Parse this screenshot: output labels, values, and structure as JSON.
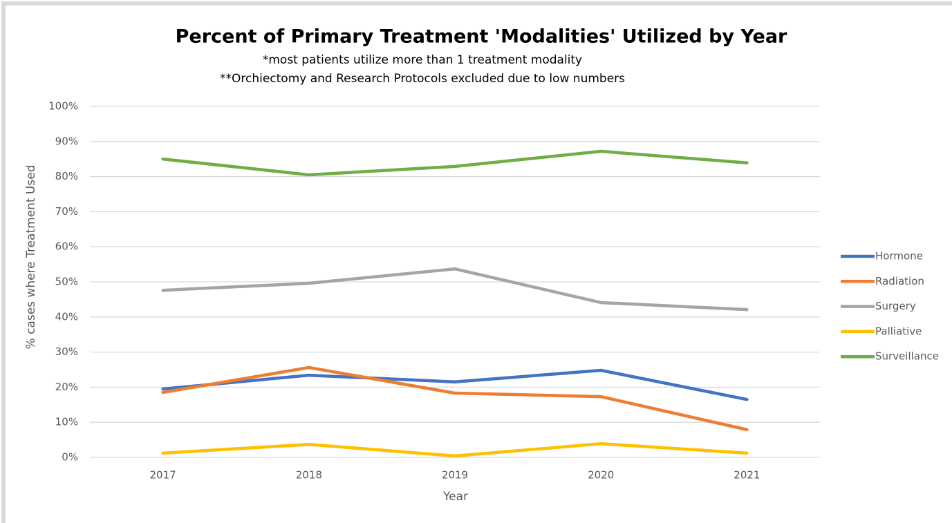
{
  "chart_data": {
    "type": "line",
    "title": "Percent of Primary Treatment 'Modalities' Utilized by Year",
    "subtitles": [
      "*most patients utilize more than 1 treatment modality",
      "**Orchiectomy and Research Protocols excluded due to low numbers"
    ],
    "x_label": "Year",
    "y_label": "% cases where Treatment Used",
    "categories": [
      "2017",
      "2018",
      "2019",
      "2020",
      "2021"
    ],
    "series": [
      {
        "name": "Hormone",
        "color": "#4472c4",
        "values": [
          19.5,
          23.4,
          21.5,
          24.8,
          16.5
        ]
      },
      {
        "name": "Radiation",
        "color": "#ed7d31",
        "values": [
          18.5,
          25.6,
          18.3,
          17.3,
          7.9
        ]
      },
      {
        "name": "Surgery",
        "color": "#a5a5a5",
        "values": [
          47.6,
          49.6,
          53.7,
          44.1,
          42.1
        ]
      },
      {
        "name": "Palliative",
        "color": "#ffc000",
        "values": [
          1.2,
          3.7,
          0.4,
          3.9,
          1.2
        ]
      },
      {
        "name": "Surveillance",
        "color": "#70ad47",
        "values": [
          85.0,
          80.5,
          82.9,
          87.2,
          83.9
        ]
      }
    ],
    "ylim": [
      0,
      100
    ],
    "yticks": [
      {
        "value": 0,
        "label": "0%"
      },
      {
        "value": 10,
        "label": "10%"
      },
      {
        "value": 20,
        "label": "20%"
      },
      {
        "value": 30,
        "label": "30%"
      },
      {
        "value": 40,
        "label": "40%"
      },
      {
        "value": 50,
        "label": "50%"
      },
      {
        "value": 60,
        "label": "60%"
      },
      {
        "value": 70,
        "label": "70%"
      },
      {
        "value": 80,
        "label": "80%"
      },
      {
        "value": 90,
        "label": "90%"
      },
      {
        "value": 100,
        "label": "100%"
      }
    ],
    "grid": true,
    "legend": "right"
  }
}
